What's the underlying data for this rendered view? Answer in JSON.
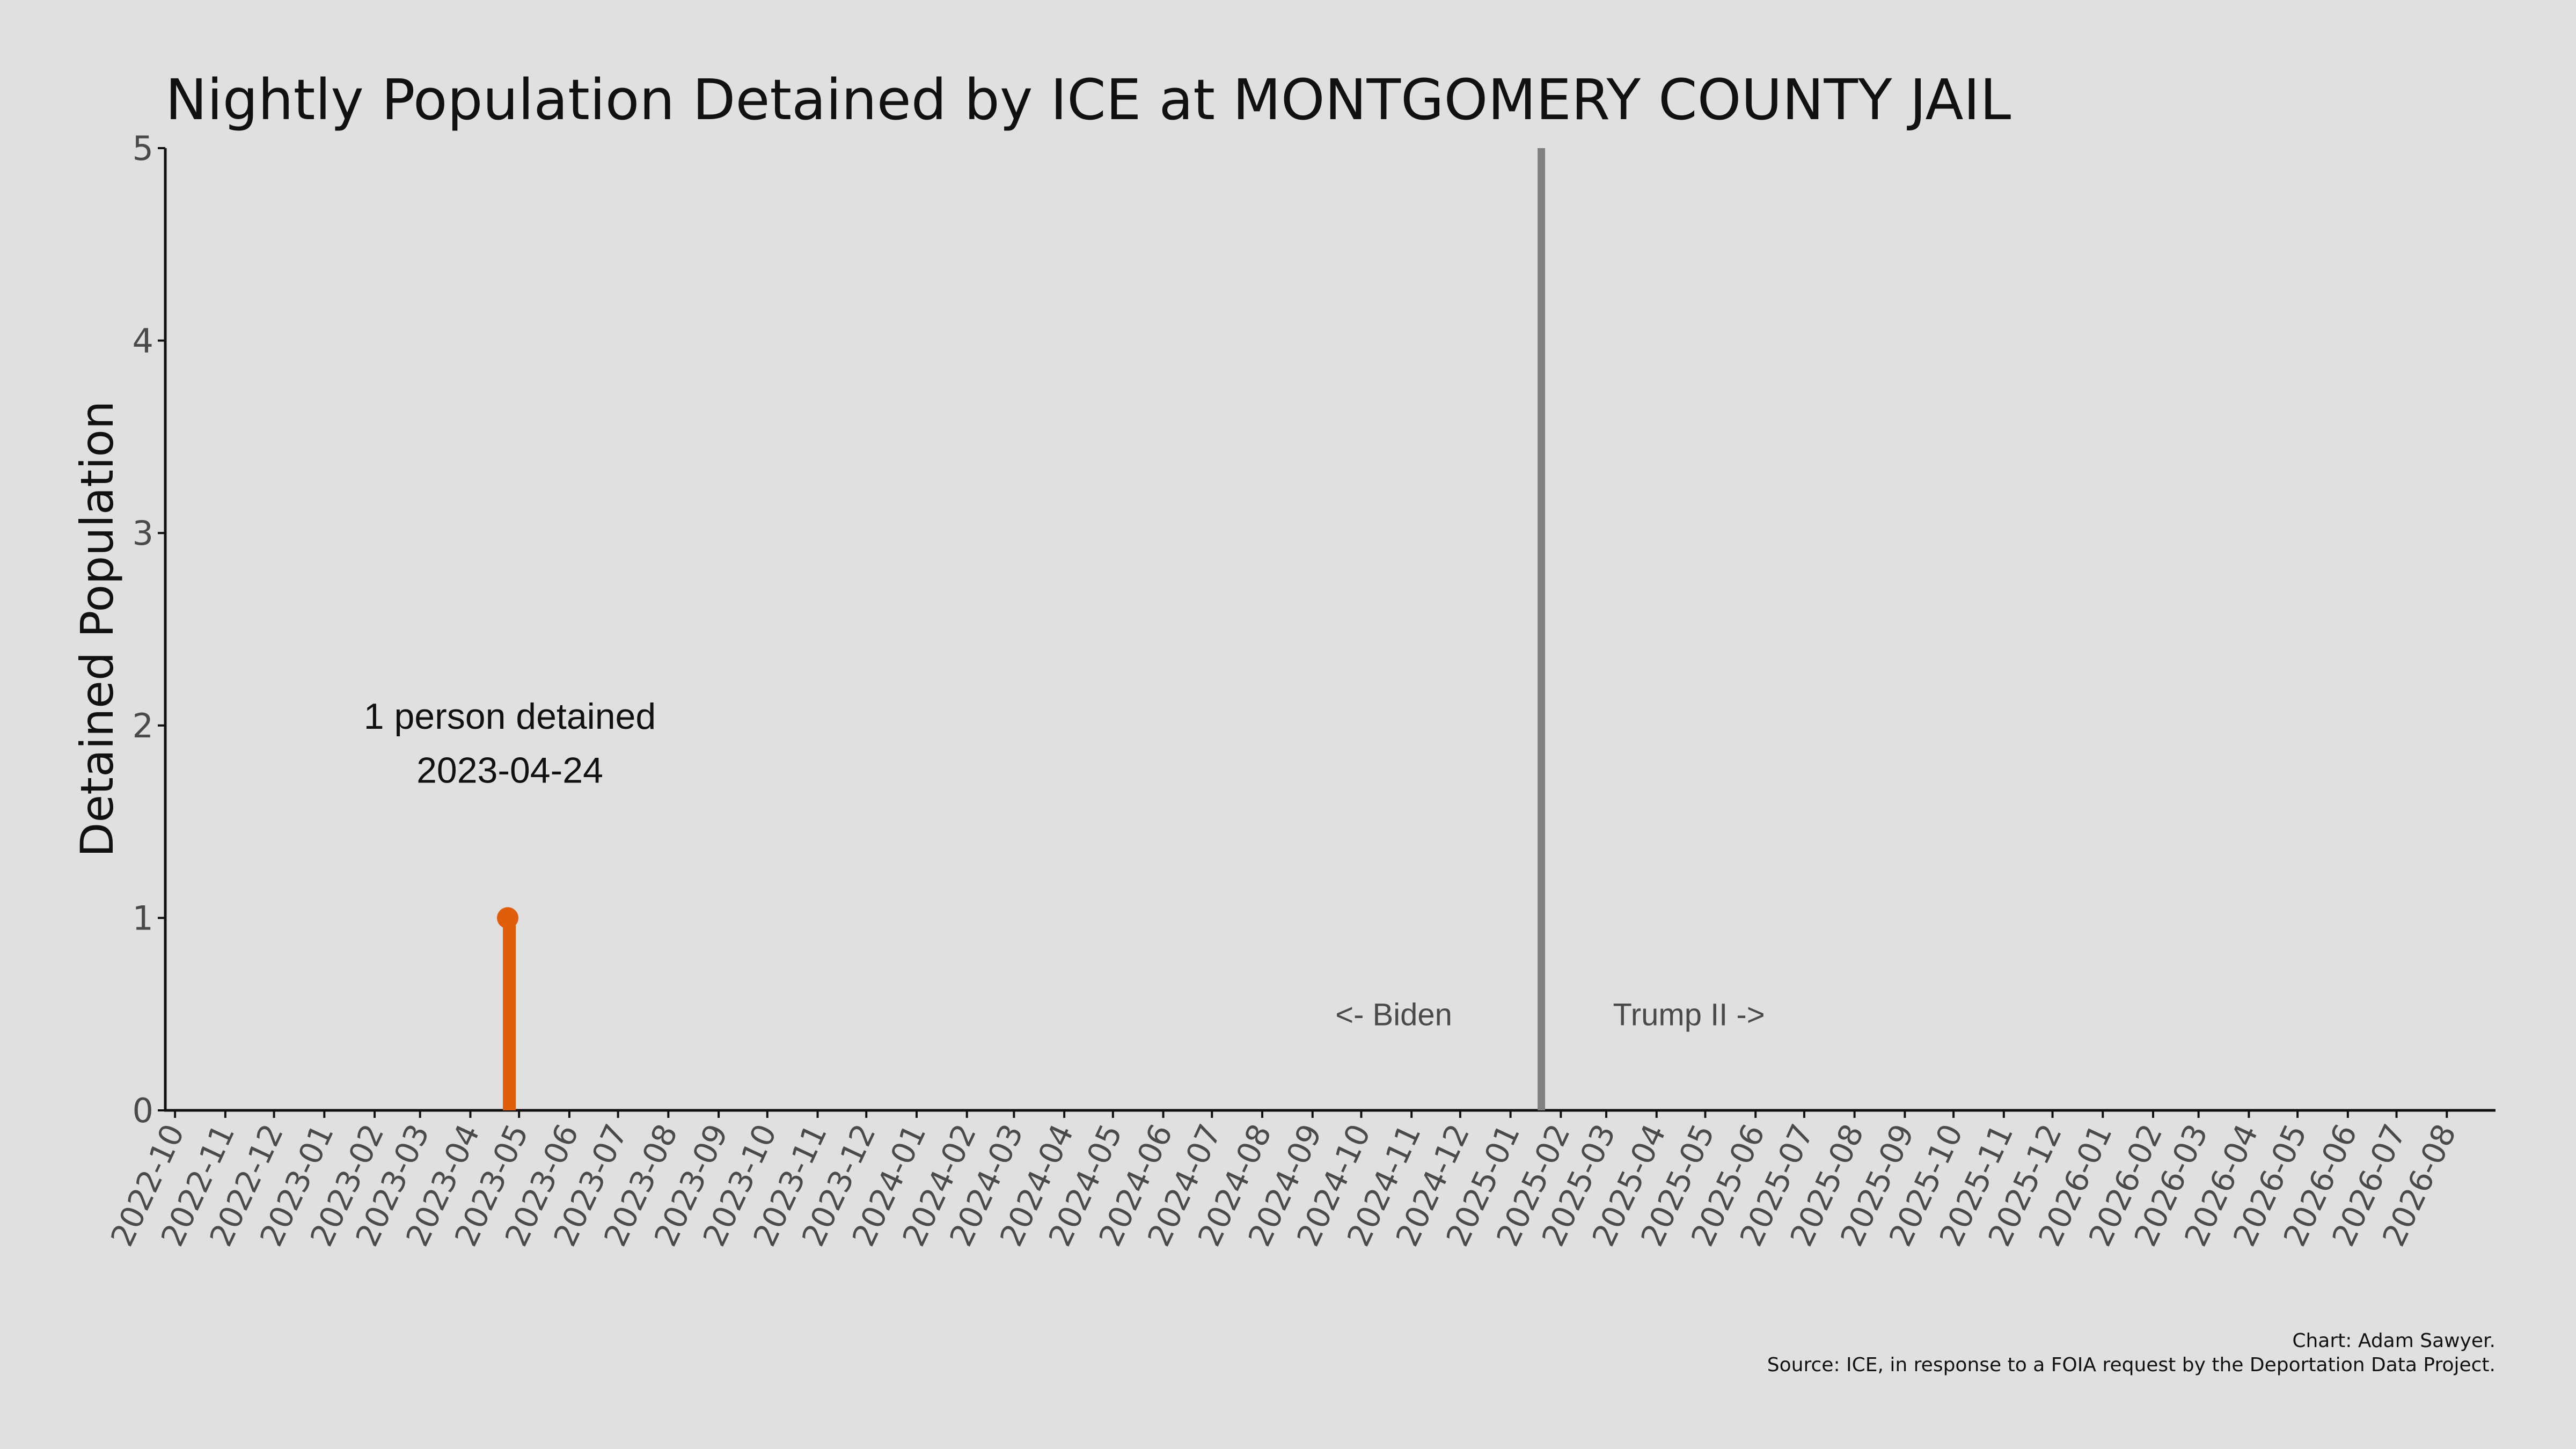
{
  "chart_data": {
    "type": "line",
    "title": "Nightly Population Detained by ICE at MONTGOMERY COUNTY JAIL",
    "xlabel": "",
    "ylabel": "Detained Population",
    "x_tick_labels": [
      "2022-10",
      "2022-11",
      "2022-12",
      "2023-01",
      "2023-02",
      "2023-03",
      "2023-04",
      "2023-05",
      "2023-06",
      "2023-07",
      "2023-08",
      "2023-09",
      "2023-10",
      "2023-11",
      "2023-12",
      "2024-01",
      "2024-02",
      "2024-03",
      "2024-04",
      "2024-05",
      "2024-06",
      "2024-07",
      "2024-08",
      "2024-09",
      "2024-10",
      "2024-11",
      "2024-12",
      "2025-01",
      "2025-02",
      "2025-03",
      "2025-04",
      "2025-05",
      "2025-06",
      "2025-07",
      "2025-08",
      "2025-09",
      "2025-10",
      "2025-11",
      "2025-12",
      "2026-01",
      "2026-02",
      "2026-03",
      "2026-04",
      "2026-05",
      "2026-06",
      "2026-07",
      "2026-08"
    ],
    "x_range": [
      "2022-09-25",
      "2026-08-31"
    ],
    "y_ticks": [
      0,
      1,
      2,
      3,
      4,
      5
    ],
    "ylim": [
      0,
      5
    ],
    "grid": false,
    "series": [
      {
        "x": [
          "2023-04-24",
          "2023-04-25"
        ],
        "values": [
          1,
          0
        ],
        "color": "#e05d0a"
      }
    ],
    "highlight_point": {
      "x": "2023-04-24",
      "y": 1,
      "color": "#e05d0a"
    },
    "annotation": {
      "line1": "1 person detained",
      "line2": "2023-04-24"
    },
    "administration_divider": {
      "x": "2025-01-20",
      "color": "#808080",
      "left_label": "<- Biden",
      "right_label": "Trump II ->"
    },
    "credits": {
      "line1": "Chart: Adam Sawyer.",
      "line2": "Source: ICE, in response to a FOIA request by the Deportation Data Project."
    }
  }
}
